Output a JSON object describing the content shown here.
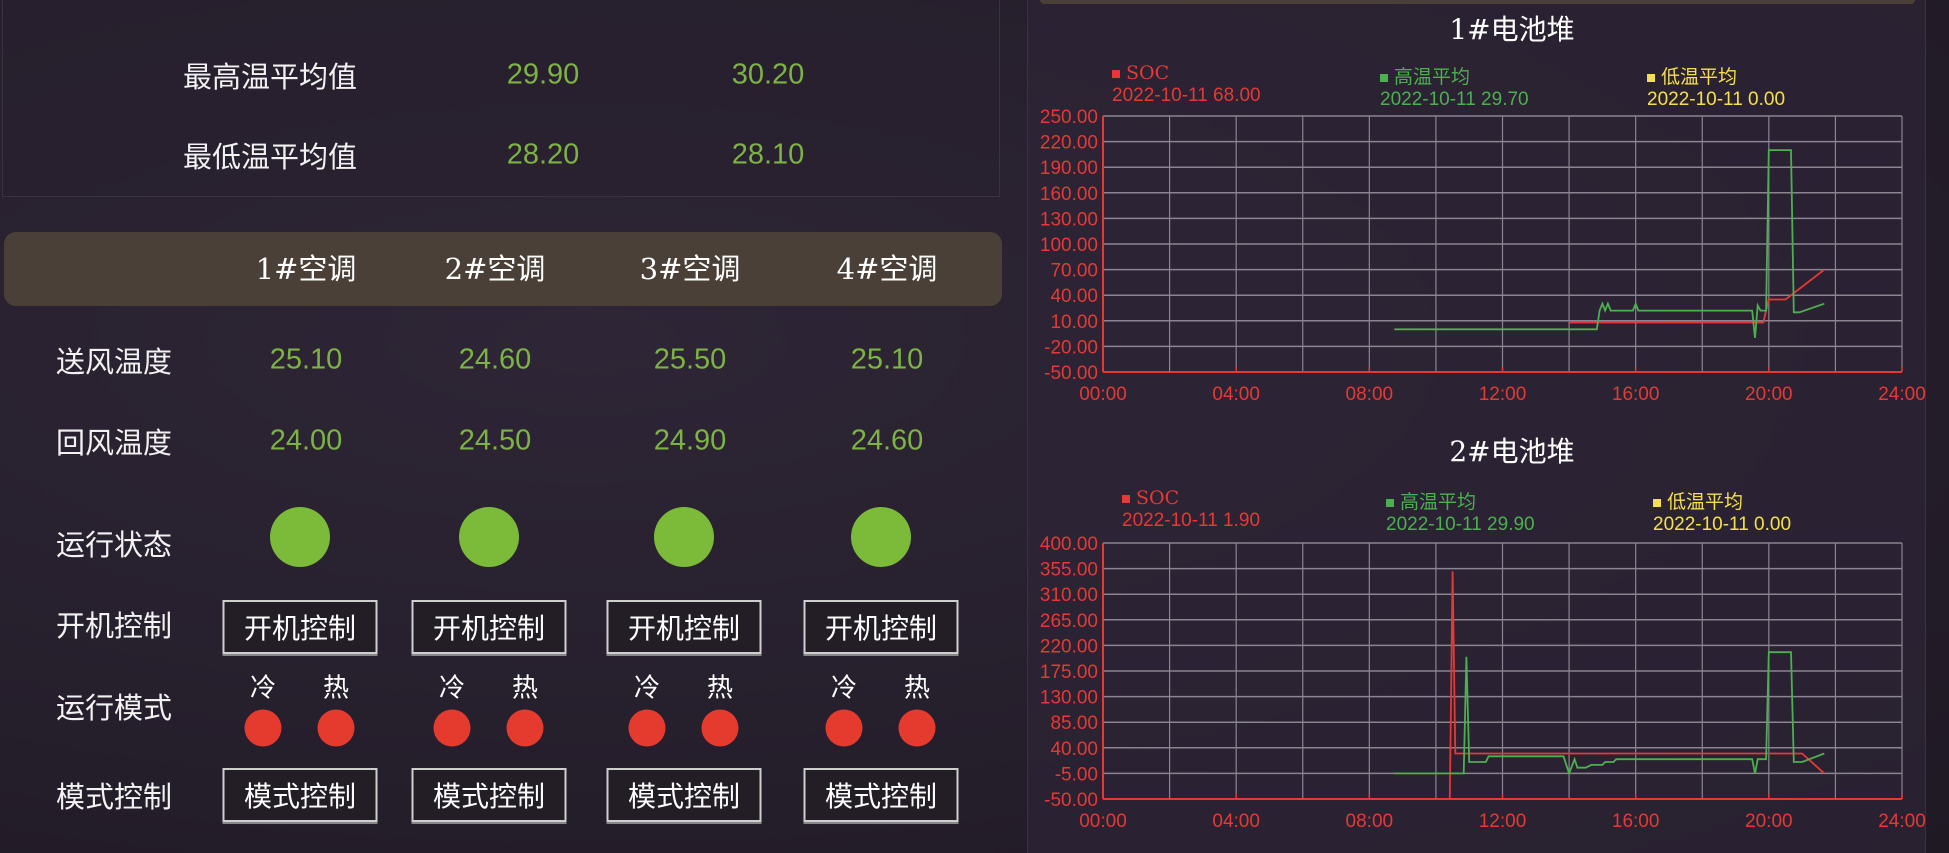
{
  "summary": {
    "rows": [
      {
        "label": "最高温平均值",
        "values": [
          "29.90",
          "30.20"
        ]
      },
      {
        "label": "最低温平均值",
        "values": [
          "28.20",
          "28.10"
        ]
      }
    ]
  },
  "ac": {
    "headers": [
      "1#空调",
      "2#空调",
      "3#空调",
      "4#空调"
    ],
    "row_labels": {
      "supply": "送风温度",
      "return": "回风温度",
      "status": "运行状态",
      "power": "开机控制",
      "mode": "运行模式",
      "mode_ctrl": "模式控制"
    },
    "supply_temp": [
      "25.10",
      "24.60",
      "25.50",
      "25.10"
    ],
    "return_temp": [
      "24.00",
      "24.50",
      "24.90",
      "24.60"
    ],
    "run_status": [
      "on",
      "on",
      "on",
      "on"
    ],
    "power_button": "开机控制",
    "mode_labels": {
      "cold": "冷",
      "hot": "热"
    },
    "mode_state": {
      "cold": "off",
      "hot": "off"
    },
    "mode_button": "模式控制",
    "colors": {
      "value": "#7cb342",
      "on": "#7cba3a",
      "off": "#e53a2e"
    }
  },
  "chart_data": [
    {
      "type": "line",
      "title": "1#电池堆",
      "legend": [
        {
          "name": "SOC",
          "color": "#e53935",
          "readout": "2022-10-11 68.00"
        },
        {
          "name": "高温平均",
          "color": "#4caf50",
          "readout": "2022-10-11 29.70"
        },
        {
          "name": "低温平均",
          "color": "#f4e04d",
          "readout": "2022-10-11 0.00"
        }
      ],
      "x_ticks": [
        "00:00",
        "04:00",
        "08:00",
        "12:00",
        "16:00",
        "20:00",
        "24:00"
      ],
      "xlim_hours": [
        0,
        24
      ],
      "y_ticks": [
        "250.00",
        "220.00",
        "190.00",
        "160.00",
        "130.00",
        "100.00",
        "70.00",
        "40.00",
        "10.00",
        "-20.00",
        "-50.00"
      ],
      "ylim": [
        -50,
        250
      ],
      "grid": true,
      "series": [
        {
          "name": "SOC",
          "points": [
            [
              "14:00",
              8
            ],
            [
              "19:50",
              8
            ],
            [
              "20:00",
              35
            ],
            [
              "20:30",
              35
            ],
            [
              "21:40",
              70
            ]
          ]
        },
        {
          "name": "高温平均",
          "points": [
            [
              "08:45",
              0
            ],
            [
              "14:50",
              0
            ],
            [
              "14:55",
              22
            ],
            [
              "15:00",
              30
            ],
            [
              "15:05",
              22
            ],
            [
              "15:10",
              30
            ],
            [
              "15:15",
              22
            ],
            [
              "15:55",
              22
            ],
            [
              "16:00",
              30
            ],
            [
              "16:05",
              22
            ],
            [
              "19:30",
              22
            ],
            [
              "19:35",
              -10
            ],
            [
              "19:40",
              28
            ],
            [
              "19:45",
              22
            ],
            [
              "19:55",
              22
            ],
            [
              "20:00",
              210
            ],
            [
              "20:40",
              210
            ],
            [
              "20:45",
              20
            ],
            [
              "20:55",
              20
            ],
            [
              "21:40",
              30
            ]
          ]
        },
        {
          "name": "低温平均",
          "points": []
        }
      ]
    },
    {
      "type": "line",
      "title": "2#电池堆",
      "legend": [
        {
          "name": "SOC",
          "color": "#e53935",
          "readout": "2022-10-11 1.90"
        },
        {
          "name": "高温平均",
          "color": "#4caf50",
          "readout": "2022-10-11 29.90"
        },
        {
          "name": "低温平均",
          "color": "#f4e04d",
          "readout": "2022-10-11 0.00"
        }
      ],
      "x_ticks": [
        "00:00",
        "04:00",
        "08:00",
        "12:00",
        "16:00",
        "20:00",
        "24:00"
      ],
      "xlim_hours": [
        0,
        24
      ],
      "y_ticks": [
        "400.00",
        "355.00",
        "310.00",
        "265.00",
        "220.00",
        "175.00",
        "130.00",
        "85.00",
        "40.00",
        "-5.00",
        "-50.00"
      ],
      "ylim": [
        -50,
        400
      ],
      "grid": true,
      "series": [
        {
          "name": "SOC",
          "points": [
            [
              "10:25",
              -50
            ],
            [
              "10:30",
              350
            ],
            [
              "10:35",
              30
            ],
            [
              "21:00",
              30
            ],
            [
              "21:40",
              -5
            ]
          ]
        },
        {
          "name": "高温平均",
          "points": [
            [
              "08:45",
              -5
            ],
            [
              "10:50",
              -5
            ],
            [
              "10:55",
              200
            ],
            [
              "11:00",
              15
            ],
            [
              "11:30",
              15
            ],
            [
              "11:35",
              25
            ],
            [
              "13:50",
              25
            ],
            [
              "14:00",
              -5
            ],
            [
              "14:10",
              20
            ],
            [
              "14:15",
              5
            ],
            [
              "14:30",
              5
            ],
            [
              "14:40",
              10
            ],
            [
              "15:00",
              10
            ],
            [
              "15:05",
              15
            ],
            [
              "15:20",
              15
            ],
            [
              "15:25",
              20
            ],
            [
              "19:30",
              20
            ],
            [
              "19:35",
              -5
            ],
            [
              "19:40",
              20
            ],
            [
              "19:55",
              20
            ],
            [
              "20:00",
              208
            ],
            [
              "20:40",
              208
            ],
            [
              "20:45",
              15
            ],
            [
              "21:00",
              15
            ],
            [
              "21:40",
              30
            ]
          ]
        },
        {
          "name": "低温平均",
          "points": []
        }
      ]
    }
  ]
}
